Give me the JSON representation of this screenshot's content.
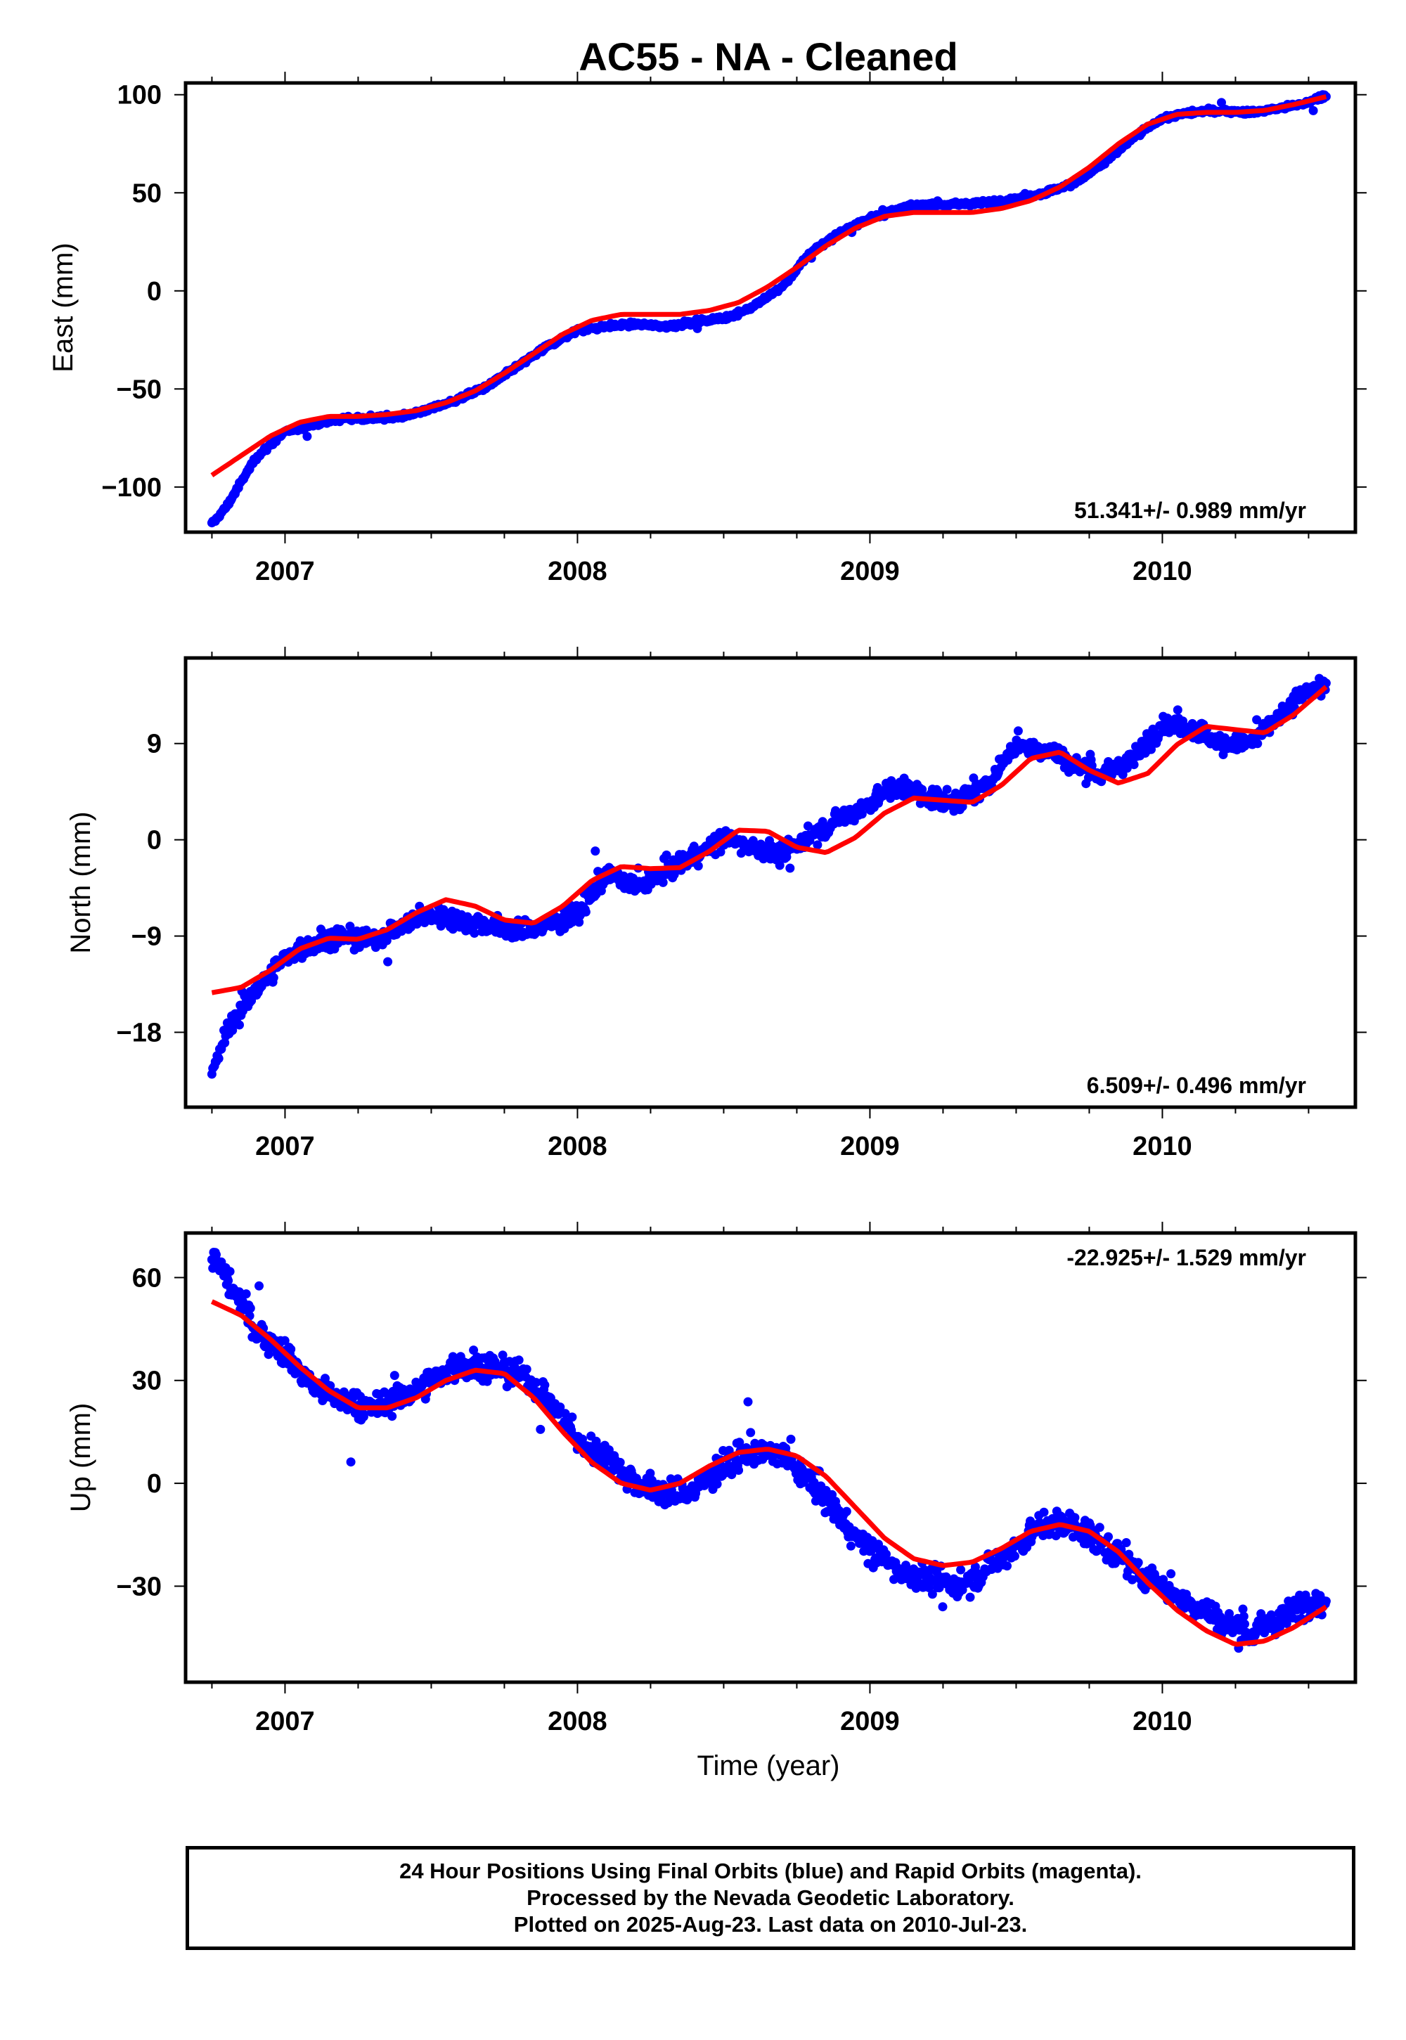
{
  "title": "AC55  - NA - Cleaned",
  "xlabel": "Time (year)",
  "colors": {
    "observations": "#0000ff",
    "model": "#ff0000",
    "frame": "#000000"
  },
  "footer": {
    "line1": "24 Hour Positions Using Final Orbits (blue) and Rapid Orbits (magenta).",
    "line2": "Processed by the Nevada Geodetic Laboratory.",
    "line3": "Plotted on 2025-Aug-23. Last data on 2010-Jul-23."
  },
  "chart_data": [
    {
      "type": "scatter",
      "ylabel": "East (mm)",
      "xlim": [
        2006.66,
        2010.66
      ],
      "ylim": [
        -123,
        106
      ],
      "xticks": [
        2007,
        2008,
        2009,
        2010
      ],
      "yticks": [
        100,
        50,
        0,
        -50,
        -100
      ],
      "ytick_labels": [
        "100",
        "50",
        "0",
        "−50",
        "−100"
      ],
      "rate_label": "51.341+/- 0.989 mm/yr",
      "rate_position": "bottom-right",
      "series": [
        {
          "kind": "points",
          "x": [
            2006.75,
            2006.8,
            2006.9,
            2007.0,
            2007.1,
            2007.2,
            2007.3,
            2007.4,
            2007.5,
            2007.6,
            2007.7,
            2007.8,
            2007.9,
            2008.0,
            2008.1,
            2008.2,
            2008.3,
            2008.4,
            2008.5,
            2008.6,
            2008.7,
            2008.8,
            2008.9,
            2009.0,
            2009.1,
            2009.2,
            2009.3,
            2009.4,
            2009.5,
            2009.6,
            2009.7,
            2009.8,
            2009.9,
            2010.0,
            2010.1,
            2010.2,
            2010.3,
            2010.4,
            2010.5,
            2010.56
          ],
          "y": [
            -119,
            -110,
            -85,
            -72,
            -68,
            -65,
            -65,
            -64,
            -60,
            -55,
            -48,
            -38,
            -28,
            -20,
            -18,
            -17,
            -18,
            -16,
            -14,
            -8,
            2,
            20,
            30,
            37,
            42,
            44,
            44,
            45,
            47,
            50,
            55,
            65,
            78,
            88,
            91,
            92,
            91,
            93,
            96,
            100
          ],
          "scatter": 1.5
        },
        {
          "kind": "model",
          "x": [
            2006.75,
            2006.85,
            2006.95,
            2007.05,
            2007.15,
            2007.25,
            2007.35,
            2007.45,
            2007.55,
            2007.65,
            2007.75,
            2007.85,
            2007.95,
            2008.05,
            2008.15,
            2008.25,
            2008.35,
            2008.45,
            2008.55,
            2008.65,
            2008.75,
            2008.85,
            2008.95,
            2009.05,
            2009.15,
            2009.25,
            2009.35,
            2009.45,
            2009.55,
            2009.65,
            2009.75,
            2009.85,
            2009.95,
            2010.05,
            2010.15,
            2010.25,
            2010.35,
            2010.45,
            2010.56
          ],
          "y": [
            -94,
            -84,
            -74,
            -67,
            -64,
            -64,
            -63,
            -61,
            -57,
            -51,
            -42,
            -32,
            -22,
            -15,
            -12,
            -12,
            -12,
            -10,
            -6,
            2,
            12,
            23,
            32,
            38,
            40,
            40,
            40,
            42,
            46,
            53,
            63,
            75,
            85,
            90,
            91,
            91,
            92,
            95,
            99
          ]
        }
      ]
    },
    {
      "type": "scatter",
      "ylabel": "North (mm)",
      "xlim": [
        2006.66,
        2010.66
      ],
      "ylim": [
        -25,
        17
      ],
      "xticks": [
        2007,
        2008,
        2009,
        2010
      ],
      "yticks": [
        9,
        0,
        -9,
        -18
      ],
      "ytick_labels": [
        "9",
        "0",
        "−9",
        "−18"
      ],
      "rate_label": "6.509+/- 0.496 mm/yr",
      "rate_position": "bottom-right",
      "series": [
        {
          "kind": "points",
          "x": [
            2006.75,
            2006.8,
            2006.9,
            2007.0,
            2007.1,
            2007.2,
            2007.3,
            2007.4,
            2007.5,
            2007.6,
            2007.7,
            2007.8,
            2007.9,
            2008.0,
            2008.1,
            2008.2,
            2008.3,
            2008.4,
            2008.5,
            2008.6,
            2008.7,
            2008.8,
            2008.9,
            2009.0,
            2009.1,
            2009.2,
            2009.3,
            2009.4,
            2009.5,
            2009.6,
            2009.7,
            2009.8,
            2009.9,
            2010.0,
            2010.1,
            2010.2,
            2010.3,
            2010.4,
            2010.5,
            2010.56
          ],
          "y": [
            -22,
            -18,
            -14,
            -11,
            -9.5,
            -9,
            -9.5,
            -8,
            -7,
            -7.5,
            -8,
            -8.5,
            -8,
            -7,
            -3,
            -4.5,
            -3,
            -1.5,
            0,
            -0.5,
            -1.5,
            0.5,
            2,
            3.5,
            5,
            4,
            3.5,
            5,
            9,
            8.5,
            7,
            6,
            7.5,
            11,
            10.5,
            9,
            9,
            11.5,
            14,
            14.5
          ],
          "scatter": 1.2
        },
        {
          "kind": "model",
          "x": [
            2006.75,
            2006.85,
            2006.95,
            2007.05,
            2007.15,
            2007.25,
            2007.35,
            2007.45,
            2007.55,
            2007.65,
            2007.75,
            2007.85,
            2007.95,
            2008.05,
            2008.15,
            2008.25,
            2008.35,
            2008.45,
            2008.55,
            2008.65,
            2008.75,
            2008.85,
            2008.95,
            2009.05,
            2009.15,
            2009.25,
            2009.35,
            2009.45,
            2009.55,
            2009.65,
            2009.75,
            2009.85,
            2009.95,
            2010.05,
            2010.15,
            2010.25,
            2010.35,
            2010.45,
            2010.56
          ],
          "y": [
            -14.3,
            -13.8,
            -12.2,
            -10.2,
            -9.2,
            -9.3,
            -8.4,
            -6.8,
            -5.6,
            -6.2,
            -7.5,
            -7.8,
            -6.2,
            -3.8,
            -2.5,
            -2.7,
            -2.6,
            -1.1,
            0.9,
            0.8,
            -0.7,
            -1.2,
            0.2,
            2.5,
            3.9,
            3.7,
            3.5,
            5.1,
            7.6,
            8.2,
            6.5,
            5.3,
            6.2,
            8.9,
            10.6,
            10.3,
            10.0,
            11.7,
            14.3
          ]
        }
      ]
    },
    {
      "type": "scatter",
      "ylabel": "Up (mm)",
      "xlim": [
        2006.66,
        2010.66
      ],
      "ylim": [
        -58,
        73
      ],
      "xticks": [
        2007,
        2008,
        2009,
        2010
      ],
      "yticks": [
        60,
        30,
        0,
        -30
      ],
      "ytick_labels": [
        "60",
        "30",
        "0",
        "−30"
      ],
      "rate_label": "-22.925+/- 1.529 mm/yr",
      "rate_position": "top-right",
      "series": [
        {
          "kind": "points",
          "x": [
            2006.75,
            2006.8,
            2006.9,
            2007.0,
            2007.1,
            2007.2,
            2007.3,
            2007.4,
            2007.5,
            2007.6,
            2007.7,
            2007.8,
            2007.9,
            2008.0,
            2008.1,
            2008.2,
            2008.3,
            2008.4,
            2008.5,
            2008.6,
            2008.7,
            2008.8,
            2008.9,
            2009.0,
            2009.1,
            2009.2,
            2009.3,
            2009.4,
            2009.5,
            2009.6,
            2009.7,
            2009.8,
            2009.9,
            2010.0,
            2010.1,
            2010.2,
            2010.3,
            2010.4,
            2010.5,
            2010.56
          ],
          "y": [
            66,
            60,
            45,
            38,
            28,
            24,
            22,
            25,
            30,
            35,
            34,
            32,
            25,
            12,
            8,
            0,
            -3,
            -2,
            5,
            10,
            8,
            0,
            -10,
            -20,
            -25,
            -28,
            -30,
            -25,
            -18,
            -12,
            -12,
            -18,
            -25,
            -30,
            -35,
            -40,
            -44,
            -40,
            -34,
            -35
          ],
          "scatter": 5
        },
        {
          "kind": "model",
          "x": [
            2006.75,
            2006.85,
            2006.95,
            2007.05,
            2007.15,
            2007.25,
            2007.35,
            2007.45,
            2007.55,
            2007.65,
            2007.75,
            2007.85,
            2007.95,
            2008.05,
            2008.15,
            2008.25,
            2008.35,
            2008.45,
            2008.55,
            2008.65,
            2008.75,
            2008.85,
            2008.95,
            2009.05,
            2009.15,
            2009.25,
            2009.35,
            2009.45,
            2009.55,
            2009.65,
            2009.75,
            2009.85,
            2009.95,
            2010.05,
            2010.15,
            2010.25,
            2010.35,
            2010.45,
            2010.56
          ],
          "y": [
            53,
            49,
            42,
            34,
            27,
            22,
            22,
            25,
            30,
            33,
            32,
            25,
            15,
            6,
            0,
            -2,
            0,
            5,
            9,
            10,
            8,
            2,
            -7,
            -16,
            -22,
            -24,
            -23,
            -19,
            -14,
            -12,
            -14,
            -20,
            -29,
            -37,
            -43,
            -47,
            -46,
            -42,
            -36
          ]
        }
      ]
    }
  ]
}
